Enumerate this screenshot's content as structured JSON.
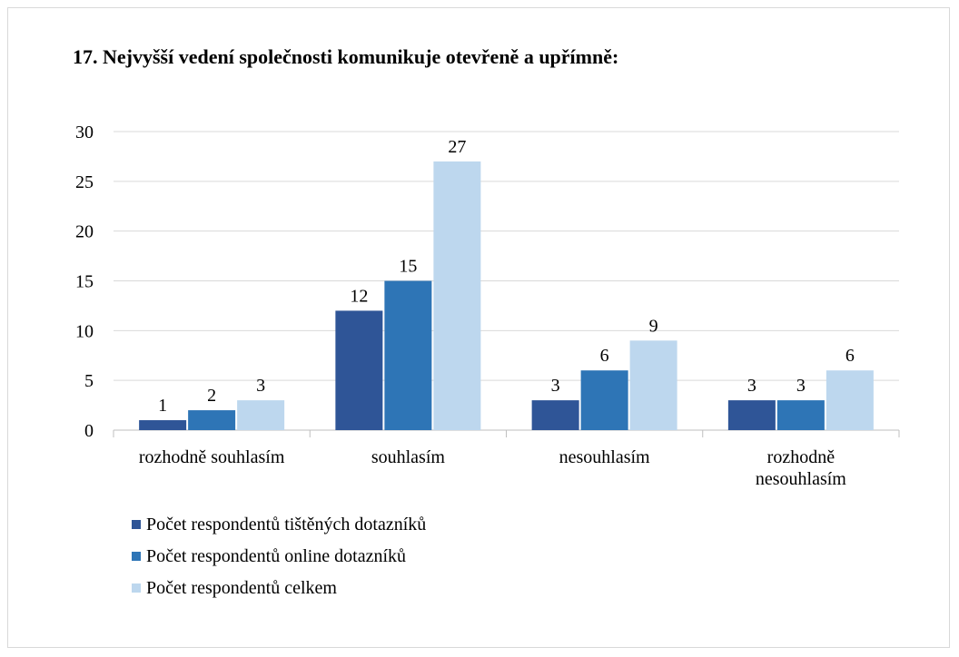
{
  "chart_data": {
    "type": "bar",
    "title": "17. Nejvyšší vedení společnosti komunikuje otevřeně a upřímně:",
    "categories": [
      "rozhodně souhlasím",
      "souhlasím",
      "nesouhlasím",
      "rozhodně nesouhlasím"
    ],
    "series": [
      {
        "name": "Počet respondentů tištěných dotazníků",
        "color": "#2f5597",
        "values": [
          1,
          12,
          3,
          3
        ]
      },
      {
        "name": "Počet respondentů online dotazníků",
        "color": "#2e75b6",
        "values": [
          2,
          15,
          6,
          3
        ]
      },
      {
        "name": "Počet respondentů celkem",
        "color": "#bdd7ee",
        "values": [
          3,
          27,
          9,
          6
        ]
      }
    ],
    "ylim": [
      0,
      30
    ],
    "yticks": [
      0,
      5,
      10,
      15,
      20,
      25,
      30
    ],
    "grid": true,
    "legend": "bottom"
  }
}
